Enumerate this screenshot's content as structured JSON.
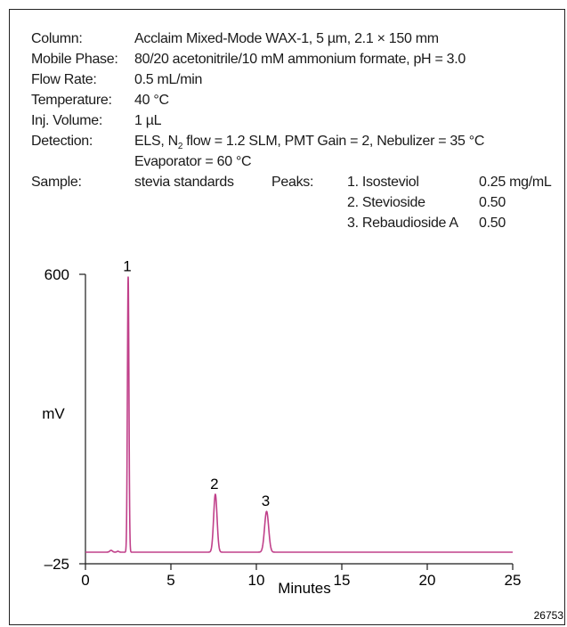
{
  "conditions": {
    "column_label": "Column:",
    "column_value": "Acclaim Mixed-Mode WAX-1, 5 µm, 2.1 × 150 mm",
    "mobile_phase_label": "Mobile Phase:",
    "mobile_phase_value": "80/20 acetonitrile/10 mM ammonium formate, pH = 3.0",
    "flow_rate_label": "Flow Rate:",
    "flow_rate_value": "0.5 mL/min",
    "temperature_label": "Temperature:",
    "temperature_value": "40 °C",
    "inj_volume_label": "Inj. Volume:",
    "inj_volume_value": "1 µL",
    "detection_label": "Detection:",
    "detection_value_pre": "ELS, N",
    "detection_value_sub": "2",
    "detection_value_post": " flow = 1.2 SLM, PMT Gain = 2, Nebulizer = 35 °C",
    "detection_value_line2": "Evaporator = 60 °C",
    "sample_label": "Sample:",
    "sample_value": "stevia standards",
    "peaks_label": "Peaks:",
    "peaks": [
      {
        "name": "1. Isosteviol",
        "conc": "0.25 mg/mL"
      },
      {
        "name": "2. Stevioside",
        "conc": "0.50"
      },
      {
        "name": "3. Rebaudioside A",
        "conc": "0.50"
      }
    ]
  },
  "figure_id": "26753",
  "chart_data": {
    "type": "line",
    "xlabel": "Minutes",
    "ylabel": "mV",
    "xlim": [
      0,
      25
    ],
    "ylim": [
      -25,
      600
    ],
    "x_ticks": [
      0,
      5,
      10,
      15,
      20,
      25
    ],
    "y_tick_labels": [
      "600",
      "–25"
    ],
    "grid": false,
    "line_color": "#c0408a",
    "baseline_mv": 0,
    "baseline_blips": [
      {
        "x": 1.5,
        "height_mv": 4,
        "width_min": 0.08
      },
      {
        "x": 1.9,
        "height_mv": 2,
        "width_min": 0.06
      }
    ],
    "peaks": [
      {
        "label": "1",
        "x": 2.5,
        "height_mv": 595,
        "width_min": 0.045
      },
      {
        "label": "2",
        "x": 7.6,
        "height_mv": 125,
        "width_min": 0.1
      },
      {
        "label": "3",
        "x": 10.6,
        "height_mv": 88,
        "width_min": 0.12
      }
    ]
  }
}
